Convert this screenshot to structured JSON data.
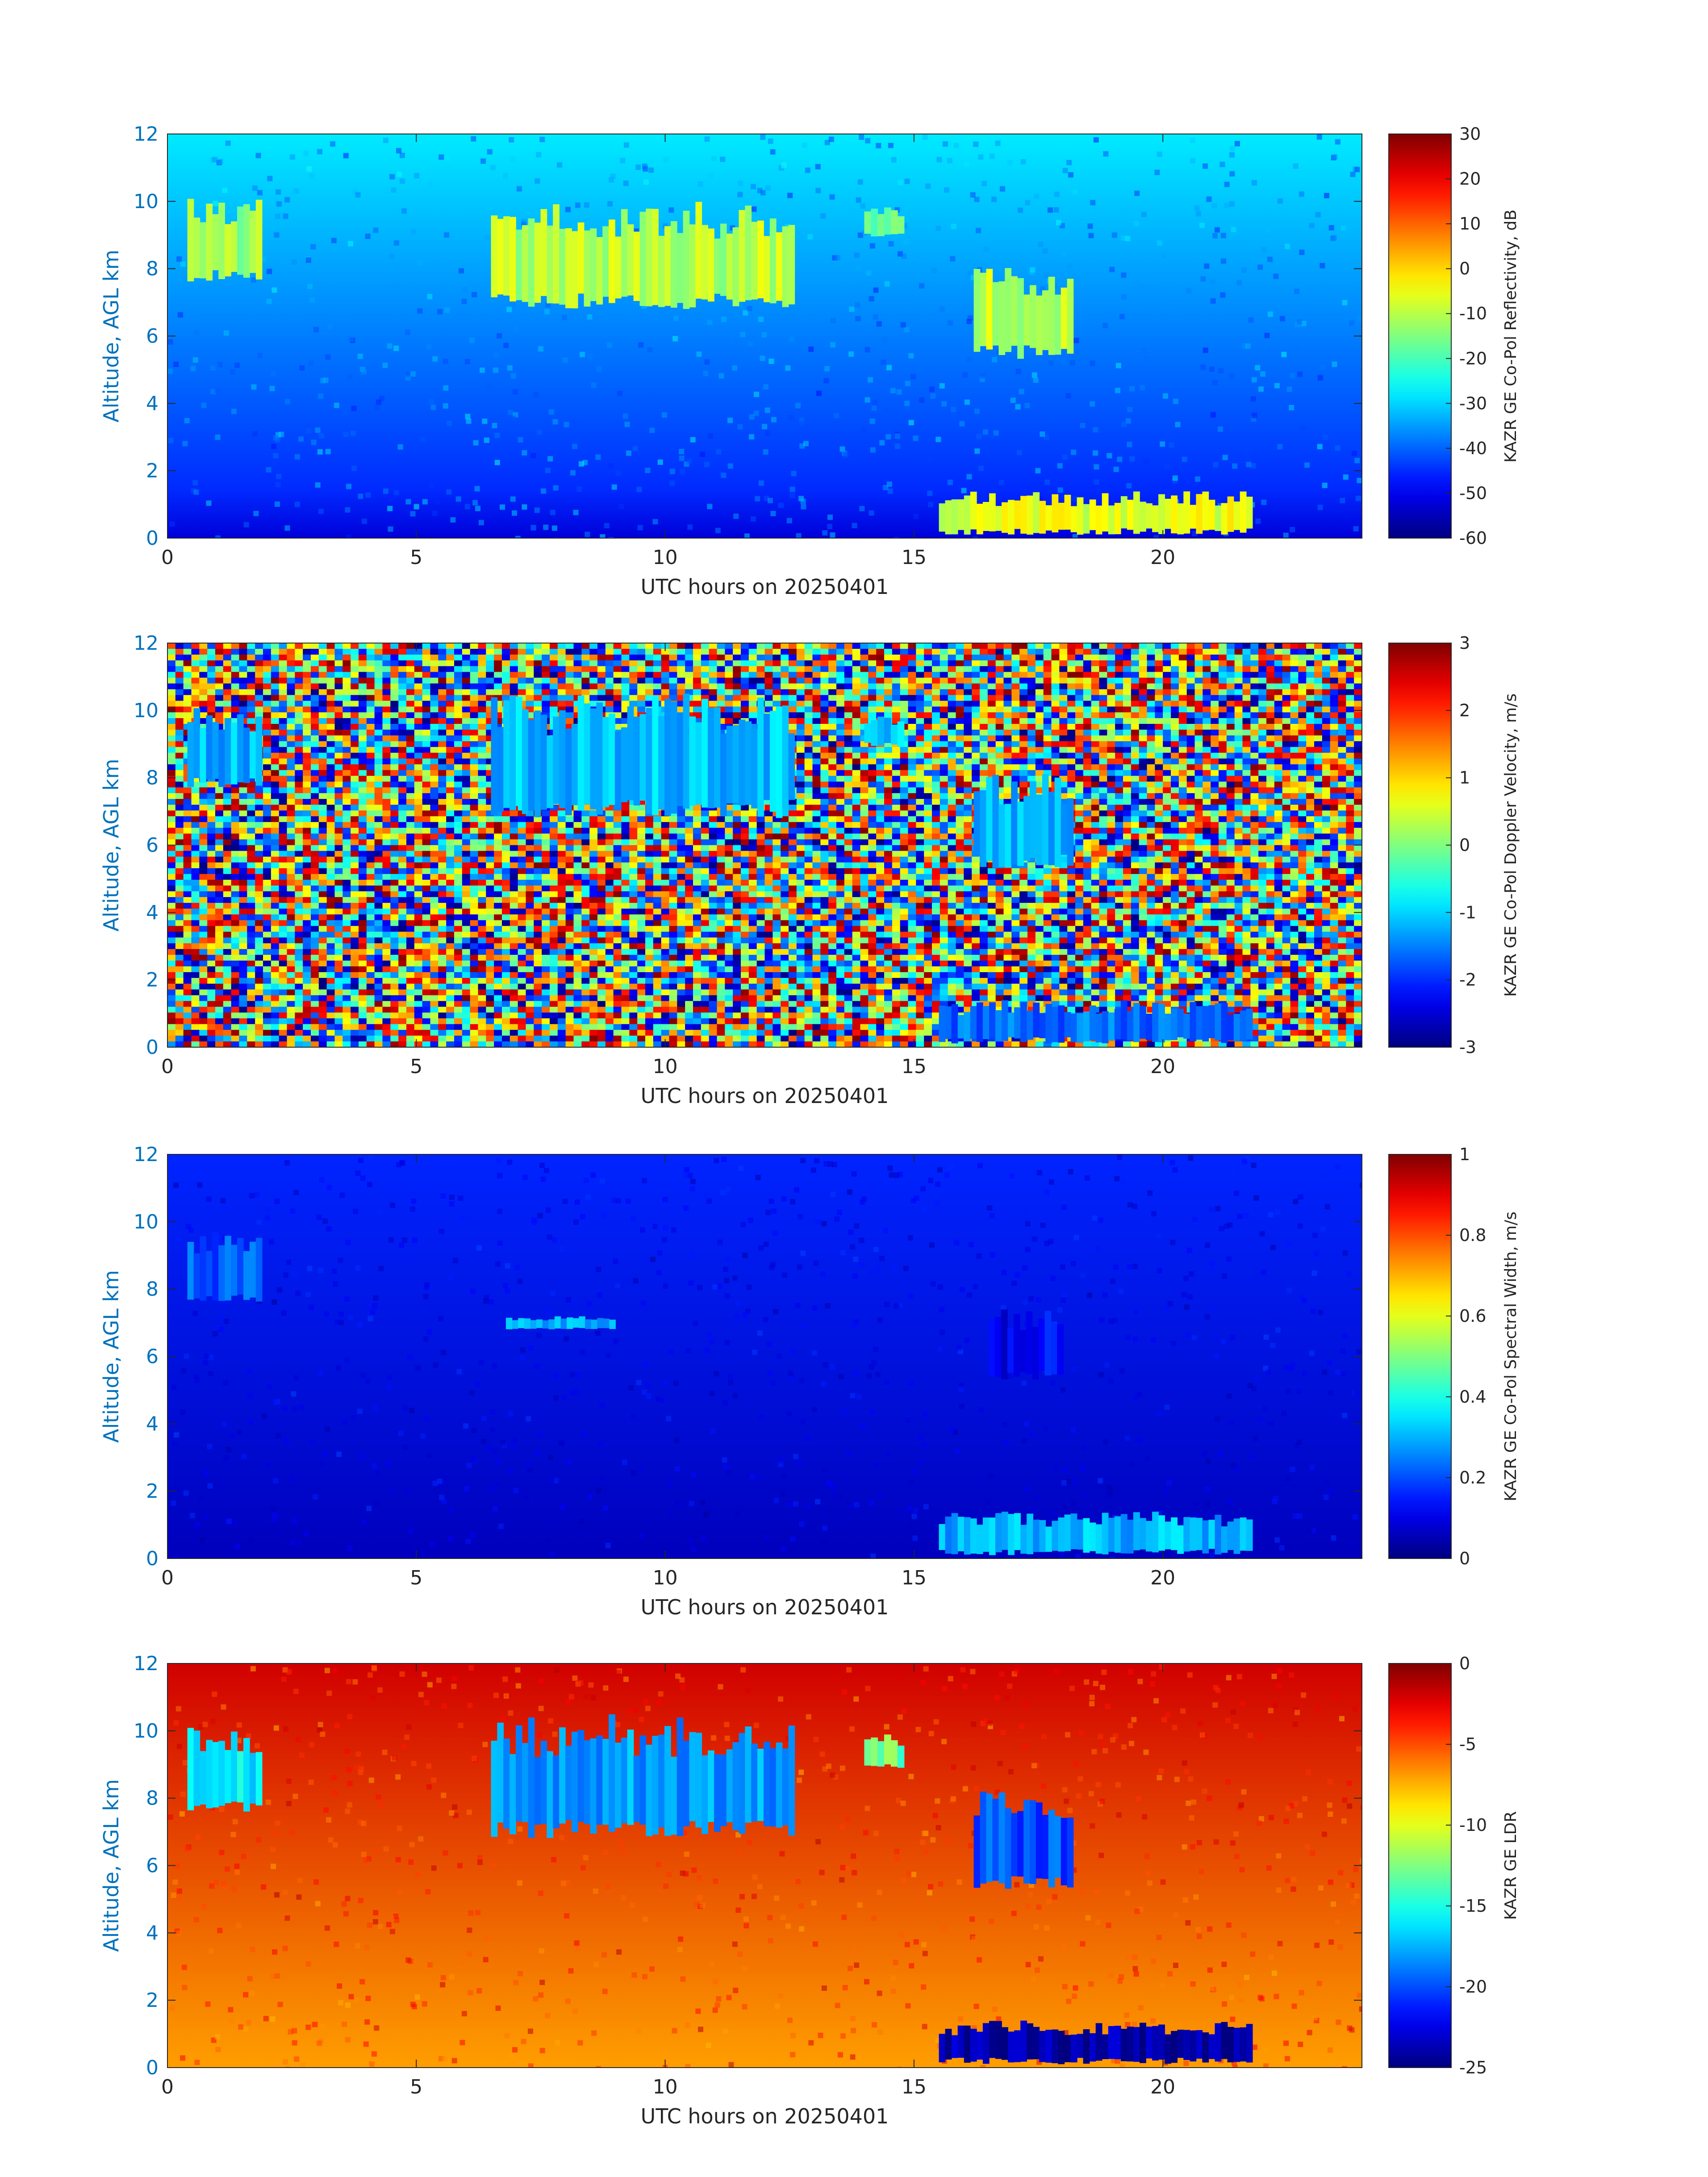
{
  "chart_data": [
    {
      "type": "heatmap",
      "variable": "KAZR GE Co-Pol Reflectivity",
      "xlabel": "UTC hours on 20250401",
      "ylabel": "Altitude, AGL km",
      "xlim": [
        0,
        24
      ],
      "ylim": [
        0,
        12
      ],
      "xticks": [
        0,
        5,
        10,
        15,
        20
      ],
      "yticks": [
        0,
        2,
        4,
        6,
        8,
        10,
        12
      ],
      "colorbar": {
        "label": "KAZR GE Co-Pol Reflectivity, dB",
        "range": [
          -60,
          30
        ],
        "ticks": [
          -60,
          -50,
          -40,
          -30,
          -20,
          -10,
          0,
          10,
          20,
          30
        ],
        "colormap": "jet"
      },
      "background": {
        "low": -45,
        "high": -28,
        "near_surface": -52
      },
      "features": [
        {
          "name": "cirrus-a",
          "x": [
            0.4,
            1.9
          ],
          "y": [
            7.6,
            10.2
          ],
          "value": -12
        },
        {
          "name": "cirrus-b",
          "x": [
            6.5,
            12.6
          ],
          "y": [
            6.8,
            10.0
          ],
          "value": -10
        },
        {
          "name": "cirrus-c",
          "x": [
            14.0,
            14.8
          ],
          "y": [
            8.9,
            9.9
          ],
          "value": -18
        },
        {
          "name": "cirrus-d",
          "x": [
            16.2,
            18.2
          ],
          "y": [
            5.3,
            8.2
          ],
          "value": -10
        },
        {
          "name": "low-cloud",
          "x": [
            15.5,
            21.8
          ],
          "y": [
            0.1,
            1.4
          ],
          "value": -6
        }
      ]
    },
    {
      "type": "heatmap",
      "variable": "KAZR GE Co-Pol Doppler Velocity",
      "xlabel": "UTC hours on 20250401",
      "ylabel": "Altitude, AGL km",
      "xlim": [
        0,
        24
      ],
      "ylim": [
        0,
        12
      ],
      "xticks": [
        0,
        5,
        10,
        15,
        20
      ],
      "yticks": [
        0,
        2,
        4,
        6,
        8,
        10,
        12
      ],
      "colorbar": {
        "label": "KAZR GE Co-Pol Doppler Velocity, m/s",
        "range": [
          -3,
          3
        ],
        "ticks": [
          -3,
          -2,
          -1,
          0,
          1,
          2,
          3
        ],
        "colormap": "jet"
      },
      "background": "noise",
      "features": [
        {
          "name": "cirrus-a",
          "x": [
            0.4,
            1.9
          ],
          "y": [
            7.6,
            10.2
          ],
          "value": -1.2
        },
        {
          "name": "cirrus-b",
          "x": [
            6.5,
            12.6
          ],
          "y": [
            6.8,
            10.5
          ],
          "value": -1.1
        },
        {
          "name": "cirrus-c",
          "x": [
            14.0,
            14.8
          ],
          "y": [
            8.9,
            9.9
          ],
          "value": -1.0
        },
        {
          "name": "cirrus-d",
          "x": [
            16.2,
            18.2
          ],
          "y": [
            5.3,
            8.2
          ],
          "value": -1.2
        },
        {
          "name": "low-cloud",
          "x": [
            15.5,
            21.8
          ],
          "y": [
            0.1,
            1.4
          ],
          "value": -1.6
        }
      ]
    },
    {
      "type": "heatmap",
      "variable": "KAZR GE Co-Pol Spectral Width",
      "xlabel": "UTC hours on 20250401",
      "ylabel": "Altitude, AGL km",
      "xlim": [
        0,
        24
      ],
      "ylim": [
        0,
        12
      ],
      "xticks": [
        0,
        5,
        10,
        15,
        20
      ],
      "yticks": [
        0,
        2,
        4,
        6,
        8,
        10,
        12
      ],
      "colorbar": {
        "label": "KAZR GE Co-Pol Spectral Width, m/s",
        "range": [
          0,
          1
        ],
        "ticks": [
          0,
          0.2,
          0.4,
          0.6,
          0.8,
          1
        ],
        "colormap": "jet"
      },
      "background": {
        "low": 0.06,
        "high": 0.16
      },
      "features": [
        {
          "name": "cirrus-a",
          "x": [
            0.4,
            1.9
          ],
          "y": [
            7.6,
            9.8
          ],
          "value": 0.22
        },
        {
          "name": "cirrus-b-base",
          "x": [
            6.8,
            9.0
          ],
          "y": [
            6.8,
            7.2
          ],
          "value": 0.3
        },
        {
          "name": "cirrus-d",
          "x": [
            16.5,
            18.0
          ],
          "y": [
            5.3,
            7.5
          ],
          "value": 0.12
        },
        {
          "name": "low-cloud",
          "x": [
            15.5,
            21.8
          ],
          "y": [
            0.1,
            1.4
          ],
          "value": 0.3
        }
      ]
    },
    {
      "type": "heatmap",
      "variable": "KAZR GE LDR",
      "xlabel": "UTC hours on 20250401",
      "ylabel": "Altitude, AGL km",
      "xlim": [
        0,
        24
      ],
      "ylim": [
        0,
        12
      ],
      "xticks": [
        0,
        5,
        10,
        15,
        20
      ],
      "yticks": [
        0,
        2,
        4,
        6,
        8,
        10,
        12
      ],
      "colorbar": {
        "label": "KAZR GE LDR",
        "range": [
          -25,
          0
        ],
        "ticks": [
          -25,
          -20,
          -15,
          -10,
          -5,
          0
        ],
        "colormap": "jet"
      },
      "background": {
        "low": -7,
        "high": -2
      },
      "features": [
        {
          "name": "cirrus-a",
          "x": [
            0.4,
            1.9
          ],
          "y": [
            7.6,
            10.2
          ],
          "value": -16
        },
        {
          "name": "cirrus-b",
          "x": [
            6.5,
            12.6
          ],
          "y": [
            6.8,
            10.5
          ],
          "value": -18
        },
        {
          "name": "cirrus-c",
          "x": [
            14.0,
            14.8
          ],
          "y": [
            8.9,
            9.9
          ],
          "value": -13
        },
        {
          "name": "cirrus-d",
          "x": [
            16.2,
            18.2
          ],
          "y": [
            5.3,
            8.2
          ],
          "value": -20
        },
        {
          "name": "low-cloud",
          "x": [
            15.5,
            21.8
          ],
          "y": [
            0.1,
            1.4
          ],
          "value": -24
        }
      ]
    }
  ]
}
